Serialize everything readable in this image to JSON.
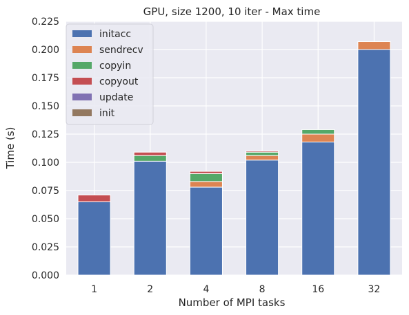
{
  "chart_data": {
    "type": "bar",
    "stacked": true,
    "title": "GPU, size 1200, 10 iter - Max time",
    "xlabel": "Number of MPI tasks",
    "ylabel": "Time (s)",
    "categories": [
      "1",
      "2",
      "4",
      "8",
      "16",
      "32"
    ],
    "ylim": [
      0,
      0.225
    ],
    "yticks": [
      "0.000",
      "0.025",
      "0.050",
      "0.075",
      "0.100",
      "0.125",
      "0.150",
      "0.175",
      "0.200",
      "0.225"
    ],
    "grid": true,
    "legend_position": "top-left",
    "series": [
      {
        "name": "initacc",
        "color": "#4c72b0",
        "values": [
          0.065,
          0.101,
          0.078,
          0.102,
          0.118,
          0.2
        ]
      },
      {
        "name": "sendrecv",
        "color": "#dd8452",
        "values": [
          0.0,
          0.0,
          0.005,
          0.004,
          0.007,
          0.007
        ]
      },
      {
        "name": "copyin",
        "color": "#55a868",
        "values": [
          0.0,
          0.005,
          0.007,
          0.003,
          0.004,
          0.0
        ]
      },
      {
        "name": "copyout",
        "color": "#c44e52",
        "values": [
          0.006,
          0.003,
          0.002,
          0.001,
          0.0,
          0.0
        ]
      },
      {
        "name": "update",
        "color": "#8172b3",
        "values": [
          0,
          0,
          0,
          0,
          0,
          0
        ]
      },
      {
        "name": "init",
        "color": "#937860",
        "values": [
          0,
          0,
          0,
          0,
          0,
          0
        ]
      }
    ]
  }
}
